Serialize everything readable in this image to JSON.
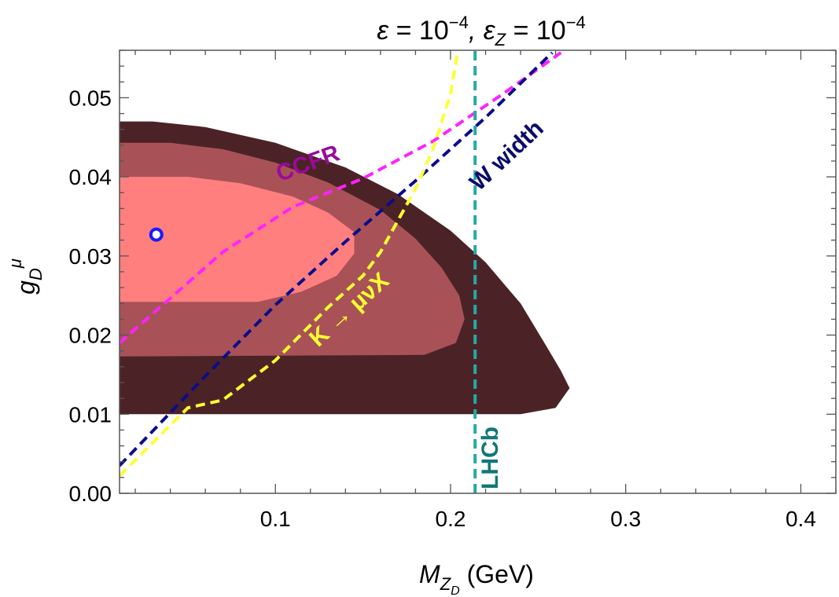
{
  "chart_data": {
    "type": "area",
    "title": "ε = 10−4, εZ = 10−4",
    "title_parts": {
      "eps": "ε",
      "eq": " = 10",
      "exp1": "−4",
      "sep": ", ε",
      "subZ": "Z",
      "eq2": " = 10",
      "exp2": "−4"
    },
    "xlabel": "MZD (GeV)",
    "xlabel_parts": {
      "m": "M",
      "z": "Z",
      "d": "D",
      "unit": " (GeV)"
    },
    "ylabel": "gDμ",
    "ylabel_parts": {
      "g": "g",
      "d": "D",
      "mu": "μ"
    },
    "xlim": [
      0.011,
      0.42
    ],
    "ylim": [
      0.0,
      0.056
    ],
    "xticks": [
      0.1,
      0.2,
      0.3,
      0.4
    ],
    "xtick_labels": [
      "0.1",
      "0.2",
      "0.3",
      "0.4"
    ],
    "yticks": [
      0.0,
      0.01,
      0.02,
      0.03,
      0.04,
      0.05
    ],
    "ytick_labels": [
      "0.00",
      "0.01",
      "0.02",
      "0.03",
      "0.04",
      "0.05"
    ],
    "grid": false,
    "best_fit_point": {
      "x": 0.032,
      "y": 0.0327,
      "color": "#1a1aff"
    },
    "regions": [
      {
        "color": "#4b2326",
        "polygon": [
          [
            0.011,
            0.047
          ],
          [
            0.03,
            0.047
          ],
          [
            0.06,
            0.0463
          ],
          [
            0.1,
            0.0443
          ],
          [
            0.14,
            0.0412
          ],
          [
            0.17,
            0.0378
          ],
          [
            0.2,
            0.0332
          ],
          [
            0.22,
            0.0292
          ],
          [
            0.24,
            0.024
          ],
          [
            0.255,
            0.0185
          ],
          [
            0.263,
            0.0155
          ],
          [
            0.268,
            0.0133
          ],
          [
            0.26,
            0.0108
          ],
          [
            0.24,
            0.01
          ],
          [
            0.011,
            0.01
          ]
        ]
      },
      {
        "color": "#a85257",
        "polygon": [
          [
            0.011,
            0.0443
          ],
          [
            0.04,
            0.0443
          ],
          [
            0.07,
            0.0435
          ],
          [
            0.1,
            0.0418
          ],
          [
            0.13,
            0.0393
          ],
          [
            0.16,
            0.0358
          ],
          [
            0.18,
            0.0322
          ],
          [
            0.195,
            0.0285
          ],
          [
            0.205,
            0.025
          ],
          [
            0.208,
            0.022
          ],
          [
            0.203,
            0.019
          ],
          [
            0.185,
            0.0175
          ],
          [
            0.011,
            0.0173
          ]
        ]
      },
      {
        "color": "#ff7f7f",
        "polygon": [
          [
            0.011,
            0.04
          ],
          [
            0.05,
            0.04
          ],
          [
            0.08,
            0.0392
          ],
          [
            0.11,
            0.0375
          ],
          [
            0.13,
            0.0355
          ],
          [
            0.145,
            0.033
          ],
          [
            0.145,
            0.0303
          ],
          [
            0.135,
            0.0275
          ],
          [
            0.115,
            0.0255
          ],
          [
            0.09,
            0.0242
          ],
          [
            0.011,
            0.0242
          ]
        ]
      }
    ],
    "series": [
      {
        "name": "CCFR",
        "color": "#ff22ff",
        "style": "dashed",
        "x": [
          0.011,
          0.07,
          0.11,
          0.15,
          0.19,
          0.23,
          0.263
        ],
        "y": [
          0.019,
          0.0305,
          0.0362,
          0.0398,
          0.0445,
          0.0505,
          0.0557
        ]
      },
      {
        "name": "W width",
        "color": "#0b0b8c",
        "style": "dashed",
        "x": [
          0.011,
          0.06,
          0.1,
          0.14,
          0.18,
          0.22,
          0.258
        ],
        "y": [
          0.0035,
          0.0148,
          0.0238,
          0.0318,
          0.0395,
          0.0475,
          0.0557
        ]
      },
      {
        "name": "K → μνX",
        "color": "#ffff33",
        "style": "dashed",
        "x": [
          0.011,
          0.05,
          0.07,
          0.1,
          0.13,
          0.15,
          0.16,
          0.17,
          0.18,
          0.19,
          0.2,
          0.204
        ],
        "y": [
          0.0022,
          0.0108,
          0.0118,
          0.0168,
          0.0235,
          0.0275,
          0.0305,
          0.0345,
          0.0385,
          0.0435,
          0.0505,
          0.0557
        ]
      },
      {
        "name": "LHCb",
        "color": "#22aaaa",
        "style": "dashed",
        "x": [
          0.214,
          0.214
        ],
        "y": [
          0.0,
          0.056
        ]
      }
    ],
    "annotations": [
      {
        "text": "CCFR",
        "x": 0.12,
        "y": 0.0408,
        "rotation": -20,
        "color": "#9a0a9a"
      },
      {
        "text": "W width",
        "x": 0.235,
        "y": 0.042,
        "rotation": -43,
        "color": "#0b0b6c"
      },
      {
        "text": "K → μνX",
        "x": 0.145,
        "y": 0.0225,
        "rotation": -42,
        "color": "#ffff33"
      },
      {
        "text": "LHCb",
        "x": 0.227,
        "y": 0.0005,
        "rotation": -90,
        "color": "#117777"
      }
    ]
  }
}
